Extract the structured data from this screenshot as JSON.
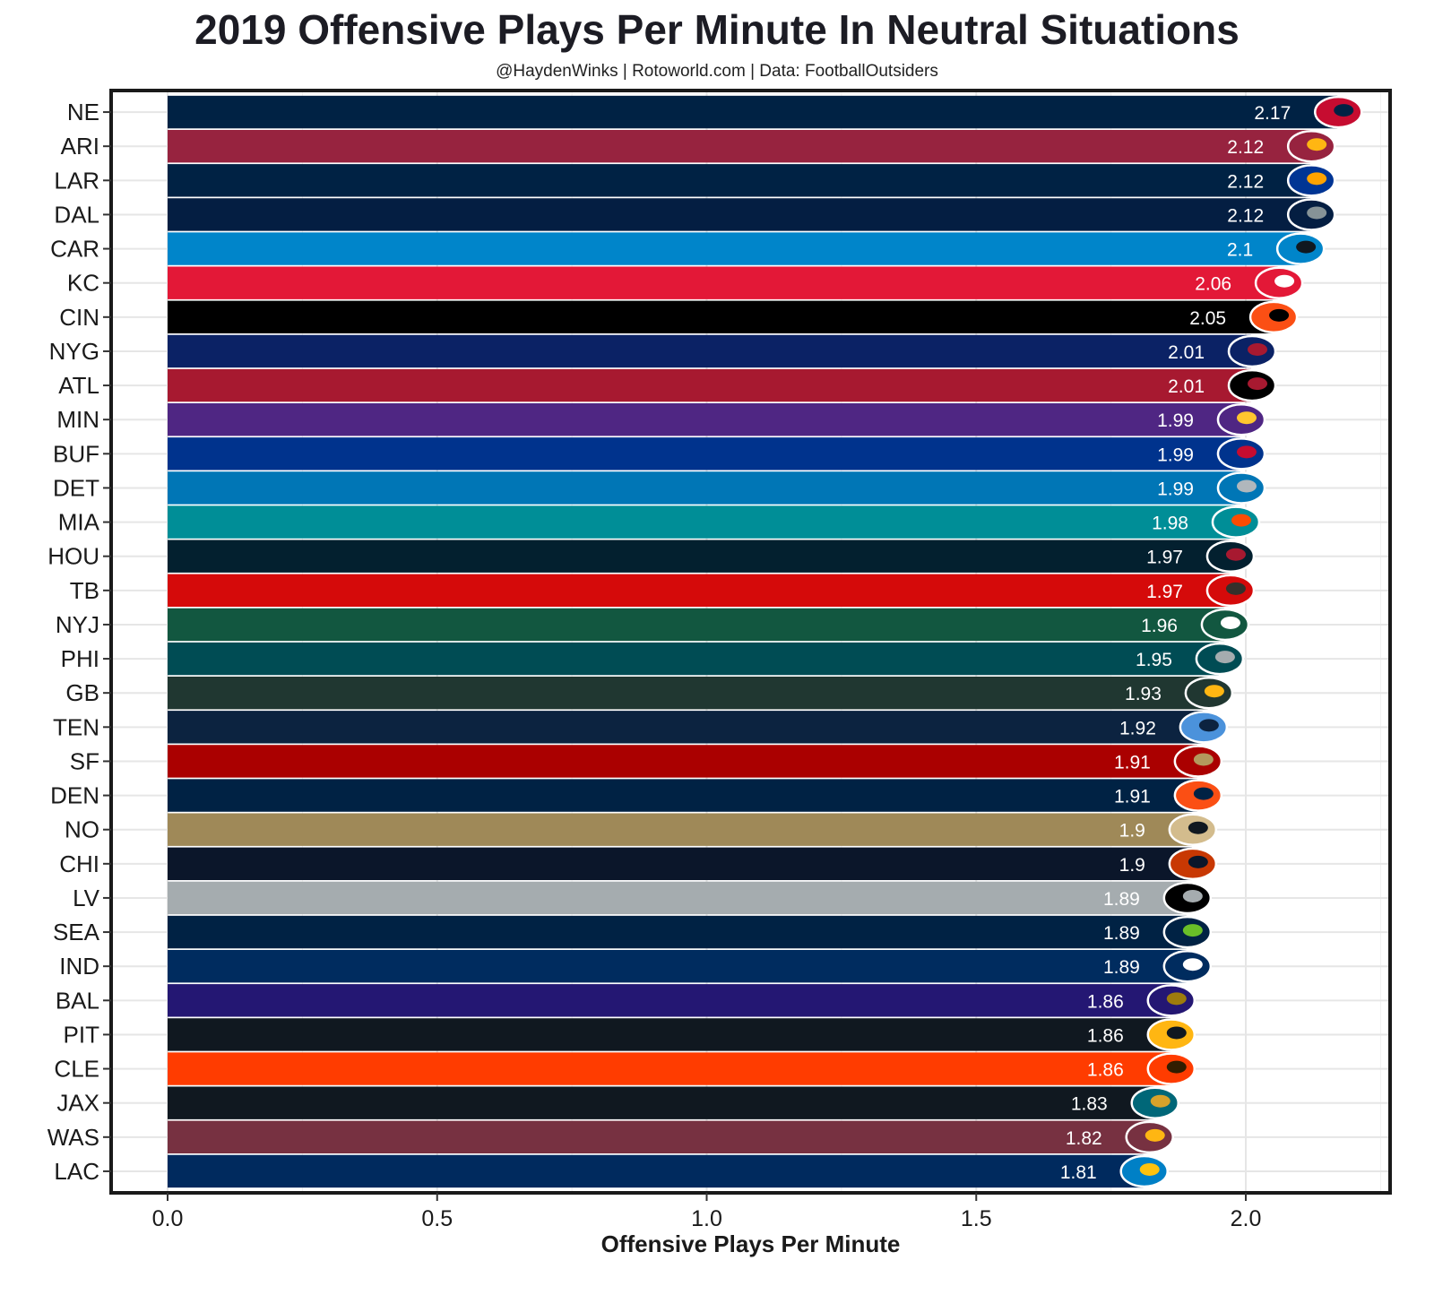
{
  "chart_data": {
    "type": "bar",
    "orientation": "horizontal",
    "title": "2019 Offensive Plays Per Minute In Neutral Situations",
    "subtitle": "@HaydenWinks | Rotoworld.com | Data: FootballOutsiders",
    "xlabel": "Offensive Plays Per Minute",
    "ylabel": "",
    "xlim": [
      -0.105,
      2.275
    ],
    "x_ticks": [
      0.0,
      0.5,
      1.0,
      1.5,
      2.0
    ],
    "x_tick_labels": [
      "0.0",
      "0.5",
      "1.0",
      "1.5",
      "2.0"
    ],
    "grid": "on",
    "legend": "none",
    "categories": [
      "NE",
      "ARI",
      "LAR",
      "DAL",
      "CAR",
      "KC",
      "CIN",
      "NYG",
      "ATL",
      "MIN",
      "BUF",
      "DET",
      "MIA",
      "HOU",
      "TB",
      "NYJ",
      "PHI",
      "GB",
      "TEN",
      "SF",
      "DEN",
      "NO",
      "CHI",
      "LV",
      "SEA",
      "IND",
      "BAL",
      "PIT",
      "CLE",
      "JAX",
      "WAS",
      "LAC"
    ],
    "values": [
      2.17,
      2.12,
      2.12,
      2.12,
      2.1,
      2.06,
      2.05,
      2.01,
      2.01,
      1.99,
      1.99,
      1.99,
      1.98,
      1.97,
      1.97,
      1.96,
      1.95,
      1.93,
      1.92,
      1.91,
      1.91,
      1.9,
      1.9,
      1.89,
      1.89,
      1.89,
      1.86,
      1.86,
      1.86,
      1.83,
      1.82,
      1.81
    ],
    "value_labels": [
      "2.17",
      "2.12",
      "2.12",
      "2.12",
      "2.1",
      "2.06",
      "2.05",
      "2.01",
      "2.01",
      "1.99",
      "1.99",
      "1.99",
      "1.98",
      "1.97",
      "1.97",
      "1.96",
      "1.95",
      "1.93",
      "1.92",
      "1.91",
      "1.91",
      "1.9",
      "1.9",
      "1.89",
      "1.89",
      "1.89",
      "1.86",
      "1.86",
      "1.86",
      "1.83",
      "1.82",
      "1.81"
    ],
    "colors": [
      "#002244",
      "#97233F",
      "#002244",
      "#041E42",
      "#0085CA",
      "#E31837",
      "#000000",
      "#0B2265",
      "#A71930",
      "#4F2683",
      "#00338D",
      "#0076B6",
      "#008E97",
      "#03202F",
      "#D50A0A",
      "#125740",
      "#004C54",
      "#203731",
      "#0C2340",
      "#AA0000",
      "#002244",
      "#9F8958",
      "#0B162A",
      "#A5ACAF",
      "#002244",
      "#002C5F",
      "#241773",
      "#101820",
      "#FF3C00",
      "#101820",
      "#773141",
      "#002A5E"
    ],
    "logo_colors": [
      [
        "#C60C30",
        "#002244"
      ],
      [
        "#97233F",
        "#FFB612"
      ],
      [
        "#003594",
        "#FFA300"
      ],
      [
        "#041E42",
        "#869397"
      ],
      [
        "#0085CA",
        "#101820"
      ],
      [
        "#E31837",
        "#FFFFFF"
      ],
      [
        "#FB4F14",
        "#000000"
      ],
      [
        "#0B2265",
        "#A71930"
      ],
      [
        "#000000",
        "#A71930"
      ],
      [
        "#4F2683",
        "#FFC62F"
      ],
      [
        "#00338D",
        "#C60C30"
      ],
      [
        "#0076B6",
        "#B0B7BC"
      ],
      [
        "#008E97",
        "#FC4C02"
      ],
      [
        "#03202F",
        "#A71930"
      ],
      [
        "#D50A0A",
        "#34302B"
      ],
      [
        "#125740",
        "#FFFFFF"
      ],
      [
        "#004C54",
        "#A5ACAF"
      ],
      [
        "#203731",
        "#FFB612"
      ],
      [
        "#4B92DB",
        "#0C2340"
      ],
      [
        "#AA0000",
        "#B3995D"
      ],
      [
        "#FB4F14",
        "#002244"
      ],
      [
        "#D3BC8D",
        "#101820"
      ],
      [
        "#C83803",
        "#0B162A"
      ],
      [
        "#000000",
        "#A5ACAF"
      ],
      [
        "#002244",
        "#69BE28"
      ],
      [
        "#002C5F",
        "#FFFFFF"
      ],
      [
        "#241773",
        "#9E7C0C"
      ],
      [
        "#FFB612",
        "#101820"
      ],
      [
        "#FF3C00",
        "#311D00"
      ],
      [
        "#006778",
        "#D7A22A"
      ],
      [
        "#773141",
        "#FFB612"
      ],
      [
        "#0080C6",
        "#FFC20E"
      ]
    ]
  }
}
